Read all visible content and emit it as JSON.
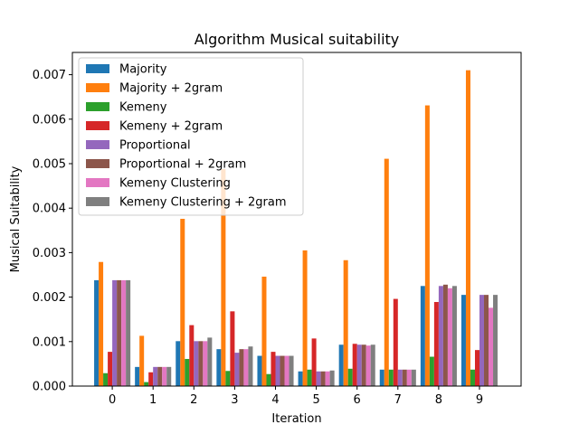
{
  "chart_data": {
    "type": "bar",
    "title": "Algorithm Musical suitability",
    "xlabel": "Iteration",
    "ylabel": "Musical Suitability",
    "categories": [
      "0",
      "1",
      "2",
      "3",
      "4",
      "5",
      "6",
      "7",
      "8",
      "9"
    ],
    "ylim": [
      0,
      0.0075
    ],
    "yticks": [
      "0.000",
      "0.001",
      "0.002",
      "0.003",
      "0.004",
      "0.005",
      "0.006",
      "0.007"
    ],
    "ytick_values": [
      0,
      0.001,
      0.002,
      0.003,
      0.004,
      0.005,
      0.006,
      0.007
    ],
    "legend_position": "upper-left",
    "grid": false,
    "series": [
      {
        "name": "Majority",
        "color": "#1f77b4",
        "values": [
          0.00238,
          0.00043,
          0.00101,
          0.00083,
          0.00068,
          0.00033,
          0.00093,
          0.00037,
          0.00225,
          0.00205
        ]
      },
      {
        "name": "Majority + 2gram",
        "color": "#ff7f0e",
        "values": [
          0.00279,
          0.00113,
          0.00376,
          0.00488,
          0.00246,
          0.00305,
          0.00283,
          0.00511,
          0.00631,
          0.0071
        ]
      },
      {
        "name": "Kemeny",
        "color": "#2ca02c",
        "values": [
          0.00029,
          9e-05,
          0.00061,
          0.00034,
          0.00027,
          0.00037,
          0.00039,
          0.00037,
          0.00066,
          0.00037
        ]
      },
      {
        "name": "Kemeny + 2gram",
        "color": "#d62728",
        "values": [
          0.00077,
          0.00031,
          0.00137,
          0.00168,
          0.00077,
          0.00107,
          0.00095,
          0.00196,
          0.00189,
          0.00081
        ]
      },
      {
        "name": "Proportional",
        "color": "#9467bd",
        "values": [
          0.00238,
          0.00043,
          0.00101,
          0.00075,
          0.00068,
          0.00033,
          0.00093,
          0.00037,
          0.00225,
          0.00205
        ]
      },
      {
        "name": "Proportional + 2gram",
        "color": "#8c564b",
        "values": [
          0.00238,
          0.00043,
          0.00101,
          0.00083,
          0.00068,
          0.00033,
          0.00093,
          0.00037,
          0.00228,
          0.00205
        ]
      },
      {
        "name": "Kemeny Clustering",
        "color": "#e377c2",
        "values": [
          0.00238,
          0.00043,
          0.00101,
          0.00083,
          0.00068,
          0.00033,
          0.00091,
          0.00037,
          0.0022,
          0.00176
        ]
      },
      {
        "name": "Kemeny Clustering + 2gram",
        "color": "#7f7f7f",
        "values": [
          0.00238,
          0.00043,
          0.00109,
          0.00089,
          0.00068,
          0.00035,
          0.00093,
          0.00037,
          0.00225,
          0.00205
        ]
      }
    ]
  }
}
